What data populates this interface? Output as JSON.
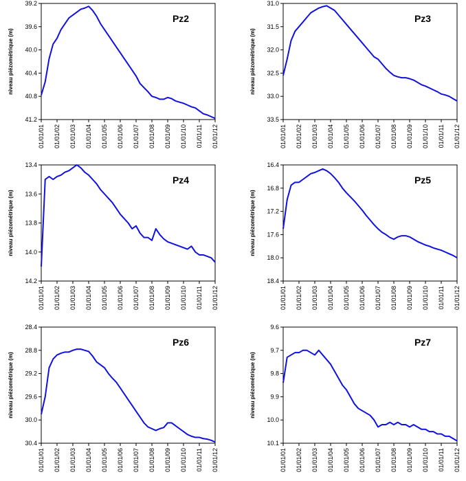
{
  "chart_data": [
    {
      "type": "line",
      "title": "Pz2",
      "ylabel": "niveau piézométrique (m)",
      "color": "#1010e0",
      "x": [
        "01/01/01",
        "01/04/01",
        "01/07/01",
        "01/10/01",
        "01/01/02",
        "01/04/02",
        "01/07/02",
        "01/10/02",
        "01/01/03",
        "01/04/03",
        "01/07/03",
        "01/10/03",
        "01/01/04",
        "01/04/04",
        "01/07/04",
        "01/10/04",
        "01/01/05",
        "01/04/05",
        "01/07/05",
        "01/10/05",
        "01/01/06",
        "01/04/06",
        "01/07/06",
        "01/10/06",
        "01/01/07",
        "01/04/07",
        "01/07/07",
        "01/10/07",
        "01/01/08",
        "01/04/08",
        "01/07/08",
        "01/10/08",
        "01/01/09",
        "01/04/09",
        "01/07/09",
        "01/10/09",
        "01/01/10",
        "01/04/10",
        "01/07/10",
        "01/10/10",
        "01/01/11",
        "01/04/11",
        "01/07/11",
        "01/10/11",
        "01/01/12"
      ],
      "values": [
        40.78,
        40.55,
        40.15,
        39.9,
        39.8,
        39.65,
        39.55,
        39.45,
        39.4,
        39.35,
        39.3,
        39.28,
        39.25,
        39.32,
        39.42,
        39.55,
        39.65,
        39.75,
        39.85,
        39.95,
        40.05,
        40.15,
        40.25,
        40.35,
        40.45,
        40.58,
        40.65,
        40.72,
        40.8,
        40.82,
        40.85,
        40.85,
        40.82,
        40.84,
        40.88,
        40.9,
        40.92,
        40.95,
        40.98,
        41.0,
        41.05,
        41.1,
        41.12,
        41.15,
        41.18
      ],
      "xlim": [
        "01/01/01",
        "01/01/12"
      ],
      "xticks": [
        "01/01/01",
        "01/01/02",
        "01/01/03",
        "01/01/04",
        "01/01/05",
        "01/01/06",
        "01/01/07",
        "01/01/08",
        "01/01/09",
        "01/01/10",
        "01/01/11",
        "01/01/12"
      ],
      "ylim": [
        41.2,
        39.2
      ],
      "yticks": [
        39.2,
        39.6,
        {
          "value": 40,
          "label": "40.0"
        },
        40.4,
        40.8,
        41.2
      ]
    },
    {
      "type": "line",
      "title": "Pz3",
      "ylabel": "niveau piézométrique (m)",
      "color": "#1010e0",
      "x": [
        "01/01/01",
        "01/04/01",
        "01/07/01",
        "01/10/01",
        "01/01/02",
        "01/04/02",
        "01/07/02",
        "01/10/02",
        "01/01/03",
        "01/04/03",
        "01/07/03",
        "01/10/03",
        "01/01/04",
        "01/04/04",
        "01/07/04",
        "01/10/04",
        "01/01/05",
        "01/04/05",
        "01/07/05",
        "01/10/05",
        "01/01/06",
        "01/04/06",
        "01/07/06",
        "01/10/06",
        "01/01/07",
        "01/04/07",
        "01/07/07",
        "01/10/07",
        "01/01/08",
        "01/04/08",
        "01/07/08",
        "01/10/08",
        "01/01/09",
        "01/04/09",
        "01/07/09",
        "01/10/09",
        "01/01/10",
        "01/04/10",
        "01/07/10",
        "01/10/10",
        "01/01/11",
        "01/04/11",
        "01/07/11",
        "01/10/11",
        "01/01/12"
      ],
      "values": [
        32.55,
        32.2,
        31.8,
        31.6,
        31.5,
        31.4,
        31.3,
        31.2,
        31.15,
        31.1,
        31.07,
        31.05,
        31.1,
        31.15,
        31.25,
        31.35,
        31.45,
        31.55,
        31.65,
        31.75,
        31.85,
        31.95,
        32.05,
        32.15,
        32.2,
        32.3,
        32.4,
        32.48,
        32.55,
        32.58,
        32.6,
        32.6,
        32.62,
        32.65,
        32.7,
        32.75,
        32.78,
        32.82,
        32.86,
        32.9,
        32.95,
        32.97,
        33.0,
        33.05,
        33.1
      ],
      "xlim": [
        "01/01/01",
        "01/01/12"
      ],
      "xticks": [
        "01/01/01",
        "01/01/02",
        "01/01/03",
        "01/01/04",
        "01/01/05",
        "01/01/06",
        "01/01/07",
        "01/01/08",
        "01/01/09",
        "01/01/10",
        "01/01/11",
        "01/01/12"
      ],
      "ylim": [
        33.5,
        31.0
      ],
      "yticks": [
        {
          "value": 31,
          "label": "31.0"
        },
        31.5,
        {
          "value": 32,
          "label": "32.0"
        },
        32.5,
        {
          "value": 33,
          "label": "33.0"
        },
        33.5
      ]
    },
    {
      "type": "line",
      "title": "Pz4",
      "ylabel": "niveau piézométrique (m)",
      "color": "#1010e0",
      "x": [
        "01/01/01",
        "01/04/01",
        "01/07/01",
        "01/10/01",
        "01/01/02",
        "01/04/02",
        "01/07/02",
        "01/10/02",
        "01/01/03",
        "01/04/03",
        "01/07/03",
        "01/10/03",
        "01/01/04",
        "01/04/04",
        "01/07/04",
        "01/10/04",
        "01/01/05",
        "01/04/05",
        "01/07/05",
        "01/10/05",
        "01/01/06",
        "01/04/06",
        "01/07/06",
        "01/10/06",
        "01/01/07",
        "01/04/07",
        "01/07/07",
        "01/10/07",
        "01/01/08",
        "01/04/08",
        "01/07/08",
        "01/10/08",
        "01/01/09",
        "01/04/09",
        "01/07/09",
        "01/10/09",
        "01/01/10",
        "01/04/10",
        "01/07/10",
        "01/10/10",
        "01/01/11",
        "01/04/11",
        "01/07/11",
        "01/10/11",
        "01/01/12"
      ],
      "values": [
        14.1,
        13.5,
        13.48,
        13.5,
        13.48,
        13.47,
        13.45,
        13.44,
        13.42,
        13.4,
        13.42,
        13.45,
        13.47,
        13.5,
        13.53,
        13.57,
        13.6,
        13.63,
        13.66,
        13.7,
        13.74,
        13.77,
        13.8,
        13.84,
        13.82,
        13.87,
        13.9,
        13.9,
        13.92,
        13.84,
        13.88,
        13.91,
        13.93,
        13.94,
        13.95,
        13.96,
        13.97,
        13.98,
        13.96,
        14.0,
        14.02,
        14.02,
        14.03,
        14.04,
        14.07
      ],
      "xlim": [
        "01/01/01",
        "01/01/12"
      ],
      "xticks": [
        "01/01/01",
        "01/01/02",
        "01/01/03",
        "01/01/04",
        "01/01/05",
        "01/01/06",
        "01/01/07",
        "01/01/08",
        "01/01/09",
        "01/01/10",
        "01/01/11",
        "01/01/12"
      ],
      "ylim": [
        14.2,
        13.4
      ],
      "yticks": [
        13.4,
        13.6,
        13.8,
        {
          "value": 14,
          "label": "14.0"
        },
        14.2
      ]
    },
    {
      "type": "line",
      "title": "Pz5",
      "ylabel": "niveau piézométrique (m)",
      "color": "#1010e0",
      "x": [
        "01/01/01",
        "01/04/01",
        "01/07/01",
        "01/10/01",
        "01/01/02",
        "01/04/02",
        "01/07/02",
        "01/10/02",
        "01/01/03",
        "01/04/03",
        "01/07/03",
        "01/10/03",
        "01/01/04",
        "01/04/04",
        "01/07/04",
        "01/10/04",
        "01/01/05",
        "01/04/05",
        "01/07/05",
        "01/10/05",
        "01/01/06",
        "01/04/06",
        "01/07/06",
        "01/10/06",
        "01/01/07",
        "01/04/07",
        "01/07/07",
        "01/10/07",
        "01/01/08",
        "01/04/08",
        "01/07/08",
        "01/10/08",
        "01/01/09",
        "01/04/09",
        "01/07/09",
        "01/10/09",
        "01/01/10",
        "01/04/10",
        "01/07/10",
        "01/10/10",
        "01/01/11",
        "01/04/11",
        "01/07/11",
        "01/10/11",
        "01/01/12"
      ],
      "values": [
        17.5,
        17.0,
        16.75,
        16.7,
        16.7,
        16.65,
        16.6,
        16.55,
        16.53,
        16.5,
        16.47,
        16.5,
        16.55,
        16.62,
        16.7,
        16.8,
        16.88,
        16.95,
        17.02,
        17.1,
        17.18,
        17.27,
        17.35,
        17.43,
        17.5,
        17.56,
        17.6,
        17.65,
        17.68,
        17.64,
        17.62,
        17.62,
        17.64,
        17.68,
        17.72,
        17.75,
        17.78,
        17.8,
        17.83,
        17.85,
        17.87,
        17.9,
        17.93,
        17.96,
        18.0
      ],
      "xlim": [
        "01/01/01",
        "01/01/12"
      ],
      "xticks": [
        "01/01/01",
        "01/01/02",
        "01/01/03",
        "01/01/04",
        "01/01/05",
        "01/01/06",
        "01/01/07",
        "01/01/08",
        "01/01/09",
        "01/01/10",
        "01/01/11",
        "01/01/12"
      ],
      "ylim": [
        18.4,
        16.4
      ],
      "yticks": [
        16.4,
        16.8,
        17.2,
        17.6,
        {
          "value": 18,
          "label": "18.0"
        },
        18.4
      ]
    },
    {
      "type": "line",
      "title": "Pz6",
      "ylabel": "niveau piézométrique (m)",
      "color": "#1010e0",
      "x": [
        "01/01/01",
        "01/04/01",
        "01/07/01",
        "01/10/01",
        "01/01/02",
        "01/04/02",
        "01/07/02",
        "01/10/02",
        "01/01/03",
        "01/04/03",
        "01/07/03",
        "01/10/03",
        "01/01/04",
        "01/04/04",
        "01/07/04",
        "01/10/04",
        "01/01/05",
        "01/04/05",
        "01/07/05",
        "01/10/05",
        "01/01/06",
        "01/04/06",
        "01/07/06",
        "01/10/06",
        "01/01/07",
        "01/04/07",
        "01/07/07",
        "01/10/07",
        "01/01/08",
        "01/04/08",
        "01/07/08",
        "01/10/08",
        "01/01/09",
        "01/04/09",
        "01/07/09",
        "01/10/09",
        "01/01/10",
        "01/04/10",
        "01/07/10",
        "01/10/10",
        "01/01/11",
        "01/04/11",
        "01/07/11",
        "01/10/11",
        "01/01/12"
      ],
      "values": [
        29.9,
        29.6,
        29.1,
        28.95,
        28.88,
        28.85,
        28.83,
        28.83,
        28.8,
        28.78,
        28.78,
        28.8,
        28.82,
        28.9,
        29.0,
        29.05,
        29.1,
        29.2,
        29.28,
        29.35,
        29.45,
        29.55,
        29.65,
        29.75,
        29.85,
        29.95,
        30.05,
        30.12,
        30.15,
        30.18,
        30.15,
        30.13,
        30.05,
        30.05,
        30.1,
        30.15,
        30.2,
        30.25,
        30.28,
        30.3,
        30.3,
        30.32,
        30.33,
        30.35,
        30.38
      ],
      "xlim": [
        "01/01/01",
        "01/01/12"
      ],
      "xticks": [
        "01/01/01",
        "01/01/02",
        "01/01/03",
        "01/01/04",
        "01/01/05",
        "01/01/06",
        "01/01/07",
        "01/01/08",
        "01/01/09",
        "01/01/10",
        "01/01/11",
        "01/01/12"
      ],
      "ylim": [
        30.4,
        28.4
      ],
      "yticks": [
        28.4,
        28.8,
        29.2,
        29.6,
        {
          "value": 30,
          "label": "30.0"
        },
        30.4
      ]
    },
    {
      "type": "line",
      "title": "Pz7",
      "ylabel": "niveau piézométrique (m)",
      "color": "#1010e0",
      "x": [
        "01/01/01",
        "01/04/01",
        "01/07/01",
        "01/10/01",
        "01/01/02",
        "01/04/02",
        "01/07/02",
        "01/10/02",
        "01/01/03",
        "01/04/03",
        "01/07/03",
        "01/10/03",
        "01/01/04",
        "01/04/04",
        "01/07/04",
        "01/10/04",
        "01/01/05",
        "01/04/05",
        "01/07/05",
        "01/10/05",
        "01/01/06",
        "01/04/06",
        "01/07/06",
        "01/10/06",
        "01/01/07",
        "01/04/07",
        "01/07/07",
        "01/10/07",
        "01/01/08",
        "01/04/08",
        "01/07/08",
        "01/10/08",
        "01/01/09",
        "01/04/09",
        "01/07/09",
        "01/10/09",
        "01/01/10",
        "01/04/10",
        "01/07/10",
        "01/10/10",
        "01/01/11",
        "01/04/11",
        "01/07/11",
        "01/10/11",
        "01/01/12"
      ],
      "values": [
        9.84,
        9.73,
        9.72,
        9.71,
        9.71,
        9.7,
        9.7,
        9.71,
        9.72,
        9.7,
        9.72,
        9.74,
        9.76,
        9.79,
        9.82,
        9.85,
        9.87,
        9.9,
        9.93,
        9.95,
        9.96,
        9.97,
        9.98,
        10.0,
        10.03,
        10.02,
        10.02,
        10.01,
        10.02,
        10.01,
        10.02,
        10.02,
        10.03,
        10.02,
        10.03,
        10.04,
        10.04,
        10.05,
        10.05,
        10.06,
        10.06,
        10.07,
        10.07,
        10.08,
        10.09
      ],
      "xlim": [
        "01/01/01",
        "01/01/12"
      ],
      "xticks": [
        "01/01/01",
        "01/01/02",
        "01/01/03",
        "01/01/04",
        "01/01/05",
        "01/01/06",
        "01/01/07",
        "01/01/08",
        "01/01/09",
        "01/01/10",
        "01/01/11",
        "01/01/12"
      ],
      "ylim": [
        10.1,
        9.6
      ],
      "yticks": [
        9.6,
        9.7,
        9.8,
        9.9,
        {
          "value": 10,
          "label": "10.0"
        },
        10.1
      ]
    }
  ]
}
